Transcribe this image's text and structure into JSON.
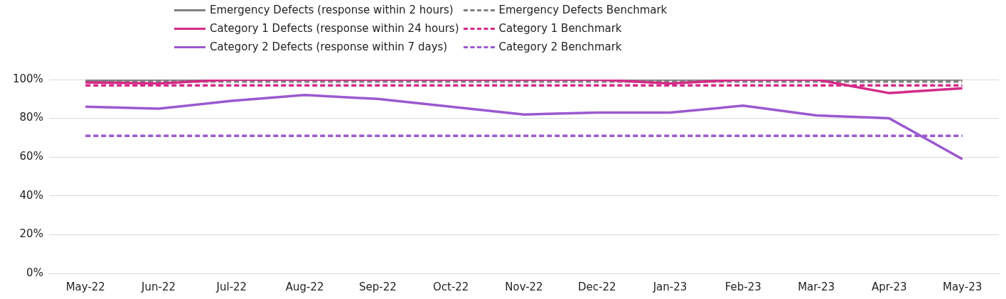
{
  "chart_data": {
    "type": "line",
    "categories": [
      "May-22",
      "Jun-22",
      "Jul-22",
      "Aug-22",
      "Sep-22",
      "Oct-22",
      "Nov-22",
      "Dec-22",
      "Jan-23",
      "Feb-23",
      "Mar-23",
      "Apr-23",
      "May-23"
    ],
    "ylim": [
      0,
      100
    ],
    "yticks": [
      {
        "value": 0,
        "label": "0%"
      },
      {
        "value": 20,
        "label": "20%"
      },
      {
        "value": 40,
        "label": "40%"
      },
      {
        "value": 60,
        "label": "60%"
      },
      {
        "value": 80,
        "label": "80%"
      },
      {
        "value": 100,
        "label": "100%"
      }
    ],
    "grid": "y",
    "legend": "top",
    "marker": "none",
    "series": [
      {
        "name": "Emergency Defects (response within 2 hours)",
        "color": "#808080",
        "line_style": "solid",
        "values": [
          99.5,
          100,
          100,
          100,
          100,
          100,
          100,
          100,
          100,
          100,
          100,
          100,
          100
        ]
      },
      {
        "name": "Emergency Defects Benchmark",
        "color": "#808080",
        "line_style": "dashed",
        "values": [
          99,
          99,
          99,
          99,
          99,
          99,
          99,
          99,
          99,
          99,
          99,
          99,
          99
        ]
      },
      {
        "name": "Category 1 Defects (response within 24 hours)",
        "color": "#d42a87",
        "line_style": "solid",
        "values": [
          98.5,
          98,
          100,
          100,
          100,
          100,
          100,
          100,
          98,
          100,
          100,
          93,
          95.5
        ]
      },
      {
        "name": "Category 1 Benchmark",
        "color": "#d42a87",
        "line_style": "dashed",
        "values": [
          97,
          97,
          97,
          97,
          97,
          97,
          97,
          97,
          97,
          97,
          97,
          97,
          97
        ]
      },
      {
        "name": "Category 2 Defects (response within 7 days)",
        "color": "#9b59d0",
        "line_style": "solid",
        "values": [
          86,
          85,
          89,
          92,
          90,
          86,
          82,
          83,
          83,
          86.5,
          81.5,
          80,
          59
        ]
      },
      {
        "name": "Category 2 Benchmark",
        "color": "#9b59d0",
        "line_style": "dashed",
        "values": [
          71,
          71,
          71,
          71,
          71,
          71,
          71,
          71,
          71,
          71,
          71,
          71,
          71
        ]
      }
    ]
  }
}
